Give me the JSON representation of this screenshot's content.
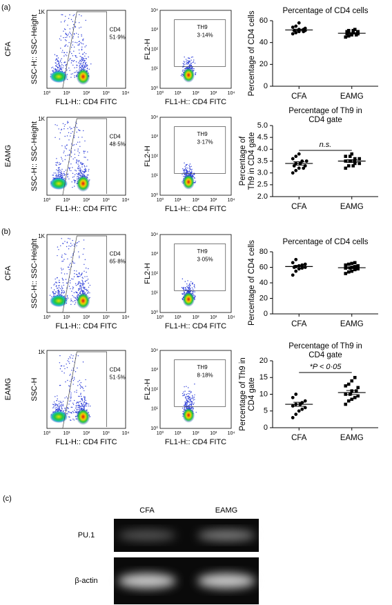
{
  "panels": [
    {
      "label": "(a)",
      "rows": [
        {
          "group": "CFA",
          "flow1": {
            "ylabel": "SSC-H:: SSC-Height",
            "xlabel": "FL1-H:: CD4 FITC",
            "gate": "CD4",
            "percent": "51·9%"
          },
          "flow2": {
            "ylabel": "FL2-H",
            "xlabel": "FL1-H:: CD4 FITC",
            "gate": "TH9",
            "percent": "3·14%"
          },
          "chart": {
            "type": "dot",
            "title": [
              "Percentage of CD4 cells"
            ],
            "ylabel": [
              "Percentage of CD4 cells"
            ],
            "categories": [
              "CFA",
              "EAMG"
            ],
            "ylim": [
              0,
              60
            ],
            "yticks": [
              0,
              20,
              40,
              60
            ],
            "series": [
              {
                "values": [
                  48,
                  49,
                  50,
                  50,
                  51,
                  51,
                  51,
                  52,
                  52,
                  53,
                  54,
                  55,
                  58
                ],
                "mean": 51.5,
                "error": 0.8
              },
              {
                "values": [
                  45,
                  46,
                  47,
                  47,
                  48,
                  48,
                  49,
                  49,
                  49,
                  50,
                  50,
                  51,
                  51,
                  52
                ],
                "mean": 48.5,
                "error": 0.6
              }
            ]
          }
        },
        {
          "group": "EAMG",
          "flow1": {
            "ylabel": "SSC-H:: SSC-Height",
            "xlabel": "FL1-H:: CD4 FITC",
            "gate": "CD4",
            "percent": "48·5%"
          },
          "flow2": {
            "ylabel": "FL2-H",
            "xlabel": "FL1-H:: CD4 FITC",
            "gate": "TH9",
            "percent": "3·17%"
          },
          "chart": {
            "type": "dot",
            "title": [
              "Percentage of Th9 in",
              "CD4 gate"
            ],
            "ylabel": [
              "Percentage of",
              "Th9 in CD4 gate"
            ],
            "categories": [
              "CFA",
              "EAMG"
            ],
            "ylim": [
              2,
              5
            ],
            "yticks": [
              {
                "value": 2,
                "label": "2.0"
              },
              2.5,
              {
                "value": 3,
                "label": "3.0"
              },
              3.5,
              {
                "value": 4,
                "label": "4.0"
              },
              4.5,
              {
                "value": 5,
                "label": "5.0"
              }
            ],
            "annotation": "n.s.",
            "annotation_y": 3.95,
            "series": [
              {
                "values": [
                  3.0,
                  3.1,
                  3.2,
                  3.2,
                  3.3,
                  3.3,
                  3.4,
                  3.4,
                  3.5,
                  3.5,
                  3.6,
                  3.7,
                  3.8
                ],
                "mean": 3.4,
                "error": 0.07
              },
              {
                "values": [
                  3.2,
                  3.3,
                  3.3,
                  3.4,
                  3.4,
                  3.5,
                  3.5,
                  3.5,
                  3.6,
                  3.6,
                  3.7,
                  3.7,
                  3.8
                ],
                "mean": 3.5,
                "error": 0.06
              }
            ]
          }
        }
      ]
    },
    {
      "label": "(b)",
      "rows": [
        {
          "group": "CFA",
          "flow1": {
            "ylabel": "SSC-H:: SSC-Height",
            "xlabel": "FL1-H:: CD4 FITC",
            "gate": "CD4",
            "percent": "65·8%"
          },
          "flow2": {
            "ylabel": "FL2-H",
            "xlabel": "FL1-H:: CD4 FITC",
            "gate": "TH9",
            "percent": "3·05%"
          },
          "chart": {
            "type": "dot",
            "title": [
              "Percentage of CD4 cells"
            ],
            "ylabel": [
              "Percentage of CD4 cells"
            ],
            "categories": [
              "CFA",
              "EAMG"
            ],
            "ylim": [
              0,
              80
            ],
            "yticks": [
              0,
              20,
              40,
              60,
              80
            ],
            "series": [
              {
                "values": [
                  50,
                  55,
                  58,
                  59,
                  60,
                  60,
                  61,
                  62,
                  63,
                  64,
                  66,
                  70
                ],
                "mean": 61,
                "error": 1.5
              },
              {
                "values": [
                  52,
                  54,
                  55,
                  57,
                  58,
                  59,
                  59,
                  60,
                  61,
                  62,
                  63,
                  64,
                  65,
                  66
                ],
                "mean": 59.5,
                "error": 1.1
              }
            ]
          }
        },
        {
          "group": "EAMG",
          "flow1": {
            "ylabel": "SSC-H",
            "xlabel": "FL1-H:: CD4 FITC",
            "gate": "CD4",
            "percent": "51·5%"
          },
          "flow2": {
            "ylabel": "FL2-H",
            "xlabel": "FL1-H:: CD4 FITC",
            "gate": "TH9",
            "percent": "8·18%"
          },
          "chart": {
            "type": "dot",
            "title": [
              "Percentage of Th9 in",
              "CD4 gate"
            ],
            "ylabel": [
              "Percentage of Th9 in",
              "CD4 gate"
            ],
            "categories": [
              "CFA",
              "EAMG"
            ],
            "ylim": [
              0,
              20
            ],
            "yticks": [
              0,
              5,
              10,
              15,
              20
            ],
            "annotation": "*P < 0·05",
            "annotation_y": 16.5,
            "series": [
              {
                "values": [
                  3,
                  4,
                  5,
                  5.5,
                  6,
                  6.5,
                  7,
                  7,
                  7.5,
                  8,
                  9,
                  10
                ],
                "mean": 7,
                "error": 0.6
              },
              {
                "values": [
                  7,
                  8,
                  8.5,
                  9,
                  9.5,
                  10,
                  10,
                  11,
                  11,
                  12,
                  12.5,
                  13,
                  14,
                  15
                ],
                "mean": 10.5,
                "error": 0.6
              }
            ]
          }
        }
      ]
    }
  ],
  "flow_axes": {
    "log_ticks": [
      "10⁰",
      "10¹",
      "10²",
      "10³",
      "10⁴"
    ],
    "linear_top": "1K"
  },
  "gel": {
    "label": "(c)",
    "lanes": [
      "CFA",
      "EAMG"
    ],
    "rows": [
      "PU.1",
      "β-actin"
    ]
  }
}
